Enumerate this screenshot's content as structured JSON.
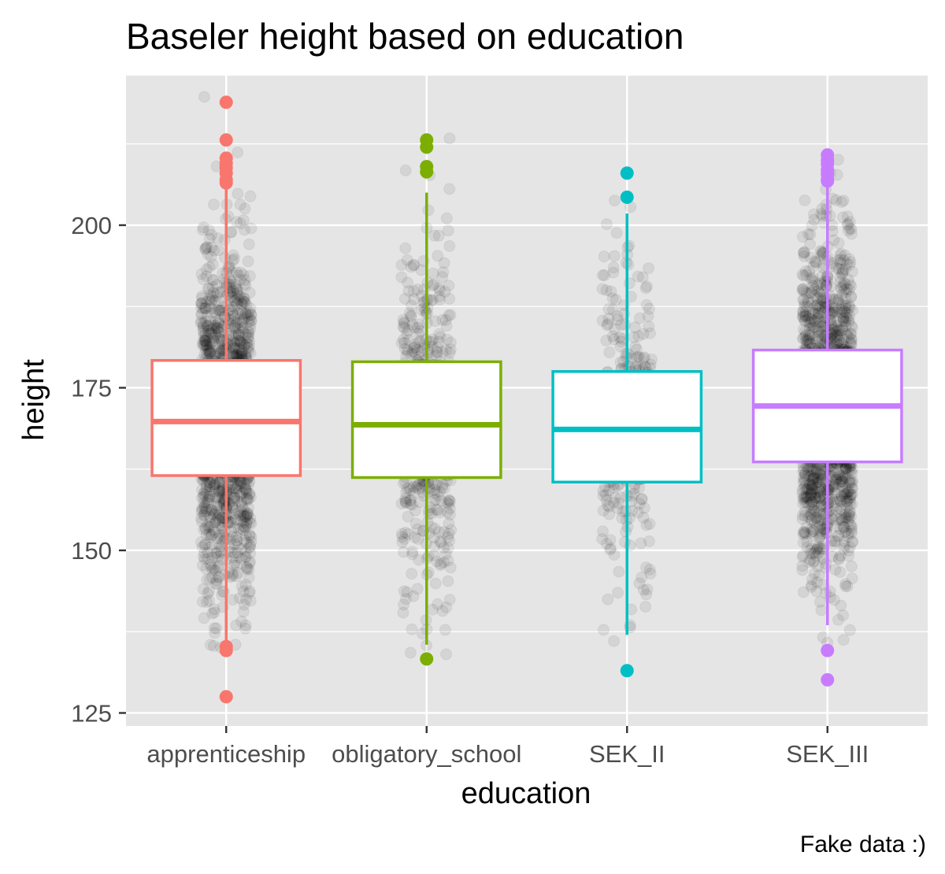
{
  "chart_data": {
    "type": "boxplot",
    "title": "Baseler height based on education",
    "xlabel": "education",
    "ylabel": "height",
    "caption": "Fake data :)",
    "ylim": [
      123,
      223
    ],
    "y_ticks": [
      125,
      150,
      175,
      200
    ],
    "grid": true,
    "background": "#e5e5e5",
    "jitter_color": "#000000",
    "categories": [
      "apprenticeship",
      "obligatory_school",
      "SEK_II",
      "SEK_III"
    ],
    "series": [
      {
        "category": "apprenticeship",
        "color": "#f8766d",
        "q1": 161.5,
        "median": 169.8,
        "q3": 179.2,
        "whisker_low": 135.8,
        "whisker_high": 205.8,
        "outliers": [
          218.9,
          213.1,
          210.3,
          209.5,
          208.8,
          208.0,
          207.0,
          206.5,
          135.2,
          134.6,
          127.5
        ],
        "jitter_range": [
          135,
          220
        ],
        "jitter_count": 1400
      },
      {
        "category": "obligatory_school",
        "color": "#7cae00",
        "q1": 161.2,
        "median": 169.3,
        "q3": 179.0,
        "whisker_low": 135.5,
        "whisker_high": 205.0,
        "outliers": [
          213.1,
          212.0,
          209.0,
          208.2,
          133.3
        ],
        "jitter_range": [
          134,
          214
        ],
        "jitter_count": 550
      },
      {
        "category": "SEK_II",
        "color": "#00bfc4",
        "q1": 160.5,
        "median": 168.6,
        "q3": 177.5,
        "whisker_low": 137.0,
        "whisker_high": 201.8,
        "outliers": [
          208.0,
          204.3,
          131.5
        ],
        "jitter_range": [
          135,
          210
        ],
        "jitter_count": 320
      },
      {
        "category": "SEK_III",
        "color": "#c77cff",
        "q1": 163.6,
        "median": 172.2,
        "q3": 180.8,
        "whisker_low": 138.5,
        "whisker_high": 206.5,
        "outliers": [
          210.8,
          210.0,
          209.4,
          208.5,
          207.8,
          207.0,
          206.8,
          134.6,
          130.1
        ],
        "jitter_range": [
          133,
          212
        ],
        "jitter_count": 1500
      }
    ]
  }
}
